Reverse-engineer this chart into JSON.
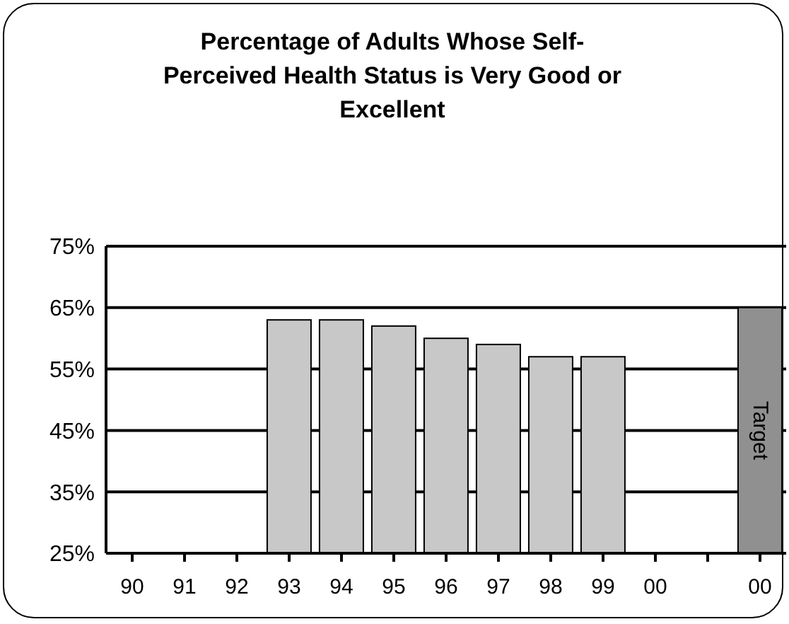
{
  "chart_data": {
    "type": "bar",
    "title": "Percentage of Adults Whose Self-Perceived Health Status is Very Good or Excellent",
    "categories": [
      "90",
      "91",
      "92",
      "93",
      "94",
      "95",
      "96",
      "97",
      "98",
      "99",
      "00",
      null,
      "00"
    ],
    "values": [
      null,
      null,
      null,
      63,
      63,
      62,
      60,
      59,
      57,
      57,
      null,
      null,
      65
    ],
    "colors": [
      "#c8c8c8",
      "#c8c8c8",
      "#c8c8c8",
      "#c8c8c8",
      "#c8c8c8",
      "#c8c8c8",
      "#c8c8c8",
      "#c8c8c8",
      "#c8c8c8",
      "#c8c8c8",
      "#c8c8c8",
      "#c8c8c8",
      "#909090"
    ],
    "annotations": [
      "Target"
    ],
    "ylim": [
      25,
      75
    ],
    "yticks": [
      {
        "value": 25,
        "label": "25%"
      },
      {
        "value": 35,
        "label": "35%"
      },
      {
        "value": 45,
        "label": "45%"
      },
      {
        "value": 55,
        "label": "55%"
      },
      {
        "value": 65,
        "label": "65%"
      },
      {
        "value": 75,
        "label": "75%"
      }
    ],
    "grid": "y"
  }
}
